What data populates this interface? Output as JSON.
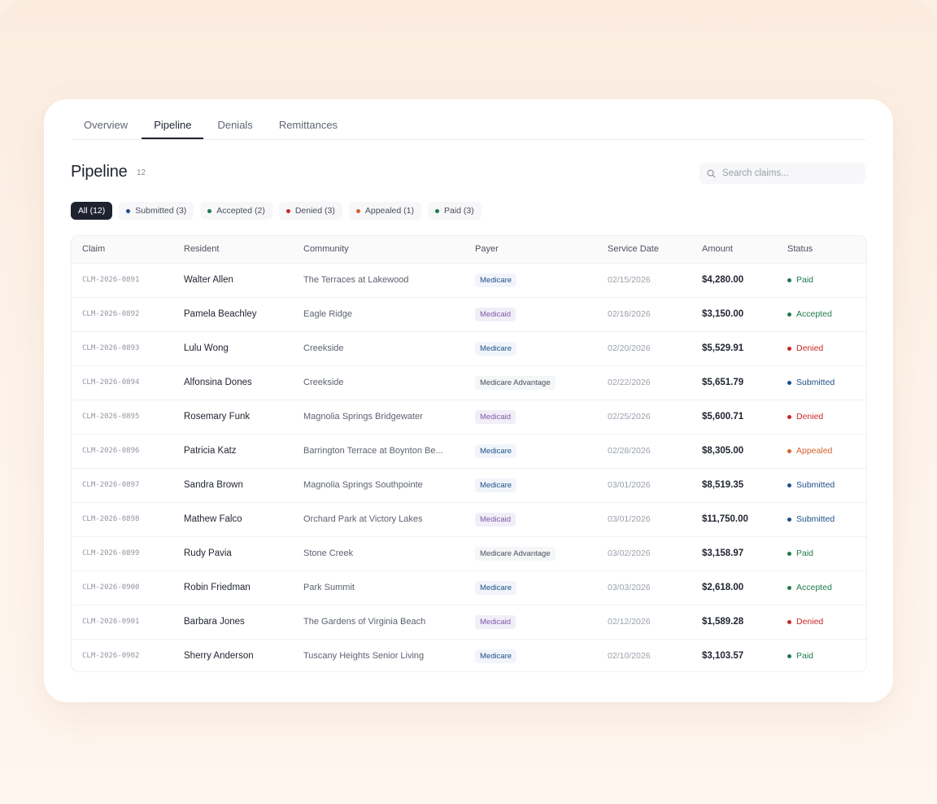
{
  "tabs": [
    {
      "label": "Overview"
    },
    {
      "label": "Pipeline",
      "active": true
    },
    {
      "label": "Denials"
    },
    {
      "label": "Remittances"
    }
  ],
  "page": {
    "title": "Pipeline",
    "count": "12"
  },
  "search": {
    "placeholder": "Search claims..."
  },
  "filters": [
    {
      "label": "All (12)",
      "active": true
    },
    {
      "label": "Submitted (3)",
      "color": "#1e4f8a"
    },
    {
      "label": "Accepted (2)",
      "color": "#1f7a4d"
    },
    {
      "label": "Denied (3)",
      "color": "#c62828"
    },
    {
      "label": "Appealed (1)",
      "color": "#d4622b"
    },
    {
      "label": "Paid (3)",
      "color": "#1f7a4d"
    }
  ],
  "table": {
    "headers": [
      "Claim",
      "Resident",
      "Community",
      "Payer",
      "Service Date",
      "Amount",
      "Status"
    ],
    "rows": [
      {
        "claim": "CLM-2026-0891",
        "resident": "Walter Allen",
        "community": "The Terraces at Lakewood",
        "payer": "Medicare",
        "date": "02/15/2026",
        "amount": "$4,280.00",
        "status": "Paid"
      },
      {
        "claim": "CLM-2026-0892",
        "resident": "Pamela Beachley",
        "community": "Eagle Ridge",
        "payer": "Medicaid",
        "date": "02/18/2026",
        "amount": "$3,150.00",
        "status": "Accepted"
      },
      {
        "claim": "CLM-2026-0893",
        "resident": "Lulu Wong",
        "community": "Creekside",
        "payer": "Medicare",
        "date": "02/20/2026",
        "amount": "$5,529.91",
        "status": "Denied"
      },
      {
        "claim": "CLM-2026-0894",
        "resident": "Alfonsina Dones",
        "community": "Creekside",
        "payer": "Medicare Advantage",
        "date": "02/22/2026",
        "amount": "$5,651.79",
        "status": "Submitted"
      },
      {
        "claim": "CLM-2026-0895",
        "resident": "Rosemary Funk",
        "community": "Magnolia Springs Bridgewater",
        "payer": "Medicaid",
        "date": "02/25/2026",
        "amount": "$5,600.71",
        "status": "Denied"
      },
      {
        "claim": "CLM-2026-0896",
        "resident": "Patricia Katz",
        "community": "Barrington Terrace at Boynton Be...",
        "payer": "Medicare",
        "date": "02/28/2026",
        "amount": "$8,305.00",
        "status": "Appealed"
      },
      {
        "claim": "CLM-2026-0897",
        "resident": "Sandra Brown",
        "community": "Magnolia Springs Southpointe",
        "payer": "Medicare",
        "date": "03/01/2026",
        "amount": "$8,519.35",
        "status": "Submitted"
      },
      {
        "claim": "CLM-2026-0898",
        "resident": "Mathew Falco",
        "community": "Orchard Park at Victory Lakes",
        "payer": "Medicaid",
        "date": "03/01/2026",
        "amount": "$11,750.00",
        "status": "Submitted"
      },
      {
        "claim": "CLM-2026-0899",
        "resident": "Rudy Pavia",
        "community": "Stone Creek",
        "payer": "Medicare Advantage",
        "date": "03/02/2026",
        "amount": "$3,158.97",
        "status": "Paid"
      },
      {
        "claim": "CLM-2026-0900",
        "resident": "Robin Friedman",
        "community": "Park Summit",
        "payer": "Medicare",
        "date": "03/03/2026",
        "amount": "$2,618.00",
        "status": "Accepted"
      },
      {
        "claim": "CLM-2026-0901",
        "resident": "Barbara Jones",
        "community": "The Gardens of Virginia Beach",
        "payer": "Medicaid",
        "date": "02/12/2026",
        "amount": "$1,589.28",
        "status": "Denied"
      },
      {
        "claim": "CLM-2026-0902",
        "resident": "Sherry Anderson",
        "community": "Tuscany Heights Senior Living",
        "payer": "Medicare",
        "date": "02/10/2026",
        "amount": "$3,103.57",
        "status": "Paid"
      }
    ]
  },
  "status_colors": {
    "Paid": "#1f7a4d",
    "Accepted": "#1f7a4d",
    "Denied": "#c62828",
    "Submitted": "#1e4f8a",
    "Appealed": "#d4622b"
  },
  "icons": {
    "search": "search-icon"
  }
}
